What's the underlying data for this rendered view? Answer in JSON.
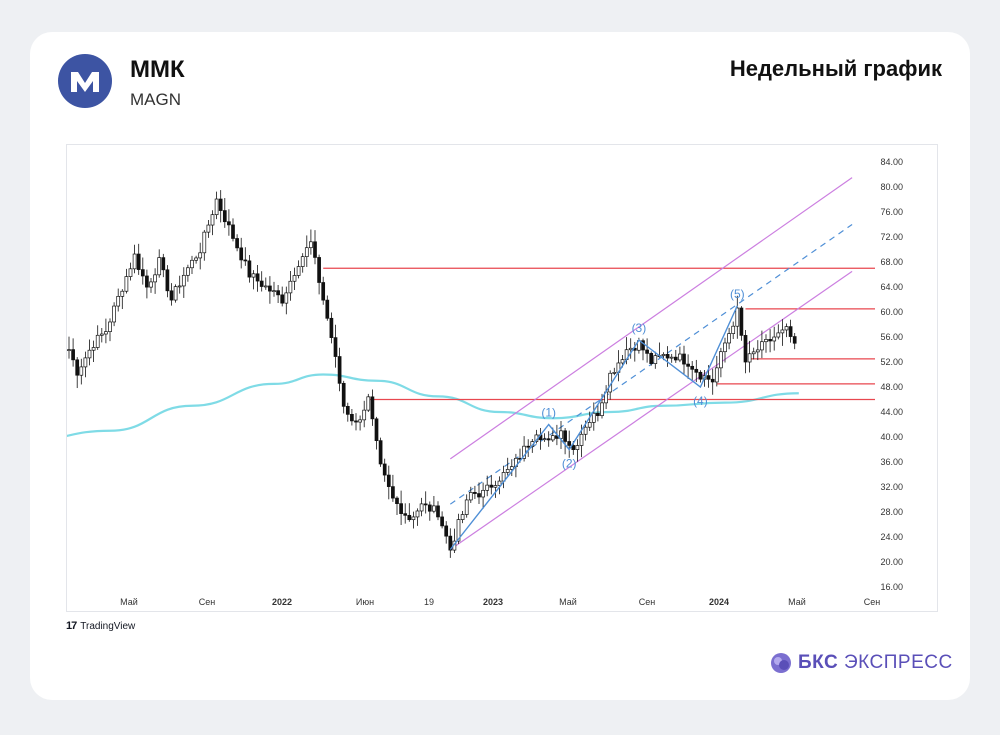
{
  "header": {
    "name": "ММК",
    "ticker": "MAGN",
    "title": "Недельный график"
  },
  "footer": {
    "tradingview": "TradingView",
    "brand_bold": "БКС",
    "brand_rest": "ЭКСПРЕСС"
  },
  "colors": {
    "accent": "#3d54a3",
    "brand": "#5a4fb8",
    "level_line": "#e8474f",
    "channel": "#cc7fe0",
    "ma_line": "#7fdbe6",
    "wave": "#4f8fd6"
  },
  "icons": [
    "mmk-logo-icon",
    "tradingview-logo-icon",
    "bks-logo-icon"
  ],
  "chart_data": {
    "type": "candlestick",
    "period": "weekly",
    "ylim": [
      16,
      84
    ],
    "y_ticks": [
      "84.00",
      "80.00",
      "76.00",
      "72.00",
      "68.00",
      "64.00",
      "60.00",
      "56.00",
      "52.00",
      "48.00",
      "44.00",
      "40.00",
      "36.00",
      "32.00",
      "28.00",
      "24.00",
      "20.00",
      "16.00"
    ],
    "x_ticks": [
      "Май",
      "Сен",
      "2022",
      "Июн",
      "19",
      "2023",
      "Май",
      "Сен",
      "2024",
      "Май",
      "Сен"
    ],
    "price_path": [
      [
        0,
        54
      ],
      [
        2,
        50.5
      ],
      [
        6,
        55
      ],
      [
        9,
        57
      ],
      [
        13,
        64
      ],
      [
        16,
        69
      ],
      [
        19,
        64
      ],
      [
        22,
        68
      ],
      [
        25,
        62
      ],
      [
        28,
        66
      ],
      [
        32,
        70
      ],
      [
        36,
        78
      ],
      [
        40,
        72
      ],
      [
        44,
        66
      ],
      [
        48,
        64
      ],
      [
        52,
        62
      ],
      [
        56,
        68
      ],
      [
        59,
        71
      ],
      [
        62,
        62
      ],
      [
        64,
        56
      ],
      [
        67,
        45
      ],
      [
        70,
        42
      ],
      [
        73,
        46
      ],
      [
        76,
        35
      ],
      [
        79,
        30
      ],
      [
        83,
        27
      ],
      [
        86,
        29
      ],
      [
        90,
        28
      ],
      [
        93,
        22
      ],
      [
        95,
        26
      ],
      [
        98,
        31
      ],
      [
        101,
        31
      ],
      [
        104,
        33
      ],
      [
        108,
        35
      ],
      [
        111,
        38
      ],
      [
        114,
        41
      ],
      [
        117,
        39
      ],
      [
        120,
        41
      ],
      [
        123,
        38
      ],
      [
        126,
        42
      ],
      [
        129,
        44
      ],
      [
        132,
        50
      ],
      [
        136,
        54
      ],
      [
        139,
        55
      ],
      [
        142,
        52
      ],
      [
        145,
        53
      ],
      [
        148,
        53
      ],
      [
        151,
        52
      ],
      [
        154,
        50
      ],
      [
        157,
        49
      ],
      [
        160,
        55
      ],
      [
        163,
        60
      ],
      [
        165,
        52
      ],
      [
        168,
        54
      ],
      [
        172,
        56
      ],
      [
        175,
        57
      ],
      [
        177,
        55
      ]
    ],
    "moving_average": [
      [
        -10,
        39.5
      ],
      [
        10,
        41
      ],
      [
        30,
        45
      ],
      [
        50,
        48.5
      ],
      [
        62,
        50
      ],
      [
        75,
        49
      ],
      [
        90,
        46.5
      ],
      [
        105,
        44
      ],
      [
        118,
        43
      ],
      [
        132,
        44
      ],
      [
        145,
        45
      ],
      [
        160,
        45.5
      ],
      [
        178,
        47
      ]
    ],
    "levels": [
      {
        "value": 67,
        "from": 62
      },
      {
        "value": 60.5,
        "from": 165
      },
      {
        "value": 52.5,
        "from": 166
      },
      {
        "value": 48.5,
        "from": 158
      },
      {
        "value": 46,
        "from": 73
      }
    ],
    "channel": {
      "upper": [
        [
          93,
          36.5
        ],
        [
          191,
          81.5
        ]
      ],
      "lower": [
        [
          93,
          22
        ],
        [
          191,
          66.5
        ]
      ],
      "middle_dashed": [
        [
          93,
          29.25
        ],
        [
          191,
          74
        ]
      ]
    },
    "waves": [
      {
        "label": "(1)",
        "x": 117,
        "y": 42
      },
      {
        "label": "(2)",
        "x": 122,
        "y": 38
      },
      {
        "label": "(3)",
        "x": 139,
        "y": 55.5
      },
      {
        "label": "(4)",
        "x": 154,
        "y": 48
      },
      {
        "label": "(5)",
        "x": 163,
        "y": 61
      }
    ],
    "wave_path": [
      [
        93,
        22
      ],
      [
        117,
        42
      ],
      [
        122,
        38
      ],
      [
        139,
        55.5
      ],
      [
        154,
        48
      ],
      [
        163,
        61
      ]
    ]
  }
}
